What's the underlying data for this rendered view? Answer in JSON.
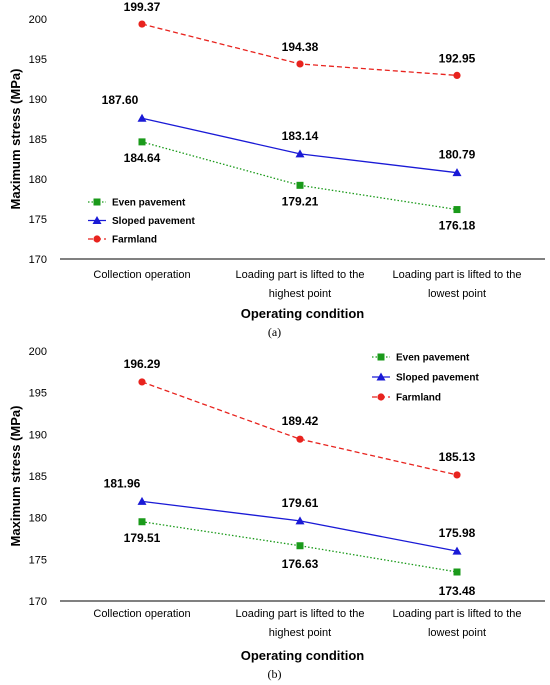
{
  "chart_data": [
    {
      "type": "line",
      "caption": "(a)",
      "categories": [
        [
          "Collection operation"
        ],
        [
          "Loading part is lifted to the",
          "highest point"
        ],
        [
          "Loading part is lifted to the",
          "lowest point"
        ]
      ],
      "xlabel": "Operating condition",
      "ylabel": "Maximum stress (MPa)",
      "ylim": [
        170,
        200
      ],
      "yticks": [
        170,
        175,
        180,
        185,
        190,
        195,
        200
      ],
      "legend_position": "left",
      "grid": false,
      "series": [
        {
          "name": "Even pavement",
          "values": [
            184.64,
            179.21,
            176.18
          ],
          "labels": [
            "184.64",
            "179.21",
            "176.18"
          ],
          "color": "#1a9a1a",
          "marker": "square",
          "dash": "dotted"
        },
        {
          "name": "Sloped pavement",
          "values": [
            187.6,
            183.14,
            180.79
          ],
          "labels": [
            "187.60",
            "183.14",
            "180.79"
          ],
          "color": "#1a1ad6",
          "marker": "triangle",
          "dash": "solid"
        },
        {
          "name": "Farmland",
          "values": [
            199.37,
            194.38,
            192.95
          ],
          "labels": [
            "199.37",
            "194.38",
            "192.95"
          ],
          "color": "#e8231e",
          "marker": "circle",
          "dash": "dashed"
        }
      ]
    },
    {
      "type": "line",
      "caption": "(b)",
      "categories": [
        [
          "Collection operation"
        ],
        [
          "Loading part is lifted to the",
          "highest point"
        ],
        [
          "Loading part is lifted to the",
          "lowest point"
        ]
      ],
      "xlabel": "Operating condition",
      "ylabel": "Maximum stress (MPa)",
      "ylim": [
        170,
        200
      ],
      "yticks": [
        170,
        175,
        180,
        185,
        190,
        195,
        200
      ],
      "legend_position": "top-right",
      "grid": false,
      "series": [
        {
          "name": "Even pavement",
          "values": [
            179.51,
            176.63,
            173.48
          ],
          "labels": [
            "179.51",
            "176.63",
            "173.48"
          ],
          "color": "#1a9a1a",
          "marker": "square",
          "dash": "dotted"
        },
        {
          "name": "Sloped pavement",
          "values": [
            181.96,
            179.61,
            175.98
          ],
          "labels": [
            "181.96",
            "179.61",
            "175.98"
          ],
          "color": "#1a1ad6",
          "marker": "triangle",
          "dash": "solid"
        },
        {
          "name": "Farmland",
          "values": [
            196.29,
            189.42,
            185.13
          ],
          "labels": [
            "196.29",
            "189.42",
            "185.13"
          ],
          "color": "#e8231e",
          "marker": "circle",
          "dash": "dashed"
        }
      ]
    }
  ]
}
